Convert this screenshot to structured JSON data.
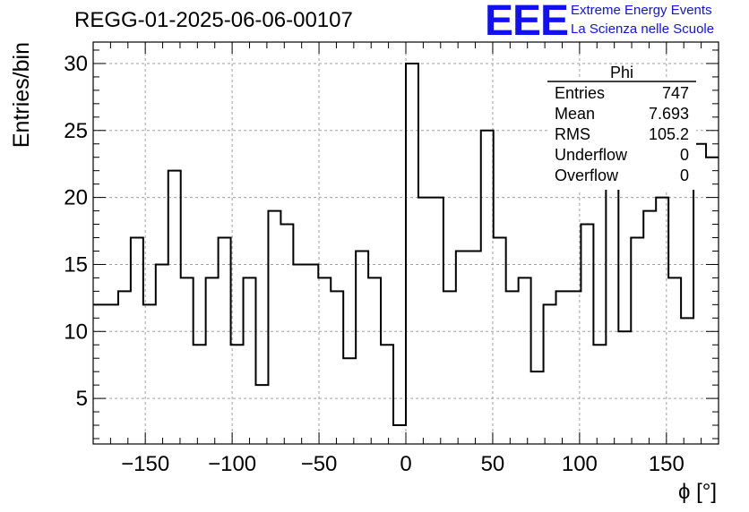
{
  "header": {
    "run_title": "REGG-01-2025-06-06-00107",
    "logo_text": "EEE",
    "logo_line1": "Extreme Energy Events",
    "logo_line2": "La Scienza nelle Scuole",
    "logo_color": "#1010f0"
  },
  "stats_box": {
    "title": "Phi",
    "rows": [
      {
        "label": "Entries",
        "value": "747"
      },
      {
        "label": "Mean",
        "value": "7.693"
      },
      {
        "label": "RMS",
        "value": "105.2"
      },
      {
        "label": "Underflow",
        "value": "0"
      },
      {
        "label": "Overflow",
        "value": "0"
      }
    ]
  },
  "chart_data": {
    "type": "histogram",
    "title": "REGG-01-2025-06-06-00107",
    "xlabel": "ϕ [°]",
    "ylabel": "Entries/bin",
    "xlim": [
      -180,
      180
    ],
    "ylim": [
      1.6,
      31.6
    ],
    "xticks": [
      -150,
      -100,
      -50,
      0,
      50,
      100,
      150
    ],
    "xtick_labels": [
      "−150",
      "−100",
      "−50",
      "0",
      "50",
      "100",
      "150"
    ],
    "yticks": [
      5,
      10,
      15,
      20,
      25,
      30
    ],
    "ytick_labels": [
      "5",
      "10",
      "15",
      "20",
      "25",
      "30"
    ],
    "grid": true,
    "bin_width": 7.2,
    "bin_edges_start": -180,
    "values": [
      12,
      12,
      13,
      17,
      12,
      15,
      22,
      14,
      9,
      14,
      17,
      9,
      14,
      6,
      19,
      18,
      15,
      15,
      14,
      13,
      8,
      16,
      14,
      9,
      3,
      30,
      20,
      20,
      13,
      16,
      16,
      25,
      17,
      13,
      14,
      7,
      12,
      13,
      13,
      18,
      9,
      23,
      10,
      17,
      19,
      20,
      14,
      11,
      24,
      23
    ],
    "line_color": "#000000"
  }
}
